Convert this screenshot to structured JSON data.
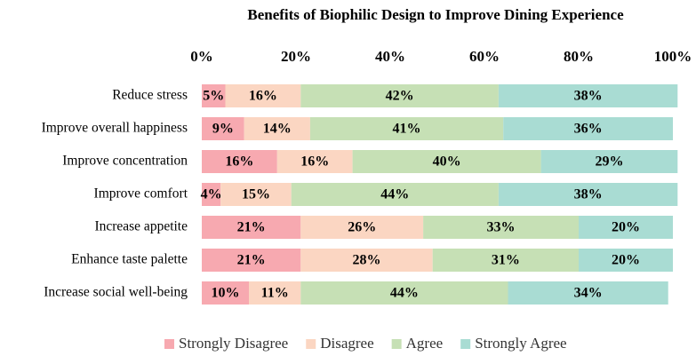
{
  "chart_data": {
    "type": "bar",
    "orientation": "horizontal",
    "stacked": true,
    "title": "Benefits of Biophilic Design to Improve Dining Experience",
    "categories": [
      "Reduce stress",
      "Improve overall happiness",
      "Improve concentration",
      "Improve comfort",
      "Increase appetite",
      "Enhance taste palette",
      "Increase social well-being"
    ],
    "series": [
      {
        "name": "Strongly Disagree",
        "color": "#f7a9b0",
        "values": [
          5,
          9,
          16,
          4,
          21,
          21,
          10
        ],
        "value_labels": [
          "5%",
          "9%",
          "16%",
          "4%",
          "21%",
          "21%",
          "10%"
        ]
      },
      {
        "name": "Disagree",
        "color": "#fbd6c2",
        "values": [
          16,
          14,
          16,
          15,
          26,
          28,
          11
        ],
        "value_labels": [
          "16%",
          "14%",
          "16%",
          "15%",
          "26%",
          "28%",
          "11%"
        ]
      },
      {
        "name": "Agree",
        "color": "#c6e0b5",
        "values": [
          42,
          41,
          40,
          44,
          33,
          31,
          44
        ],
        "value_labels": [
          "42%",
          "41%",
          "40%",
          "44%",
          "33%",
          "31%",
          "44%"
        ]
      },
      {
        "name": "Strongly Agree",
        "color": "#a9dcd3",
        "values": [
          38,
          36,
          29,
          38,
          20,
          20,
          34
        ],
        "value_labels": [
          "38%",
          "36%",
          "29%",
          "38%",
          "20%",
          "20%",
          "34%"
        ]
      }
    ],
    "xlim": [
      0,
      100
    ],
    "xticks": [
      {
        "value": 0,
        "label": "0%"
      },
      {
        "value": 20,
        "label": "20%"
      },
      {
        "value": 40,
        "label": "40%"
      },
      {
        "value": 60,
        "label": "60%"
      },
      {
        "value": 80,
        "label": "80%"
      },
      {
        "value": 100,
        "label": "100%"
      }
    ],
    "xaxis_position": "top",
    "grid": false,
    "legend": "bottom"
  }
}
